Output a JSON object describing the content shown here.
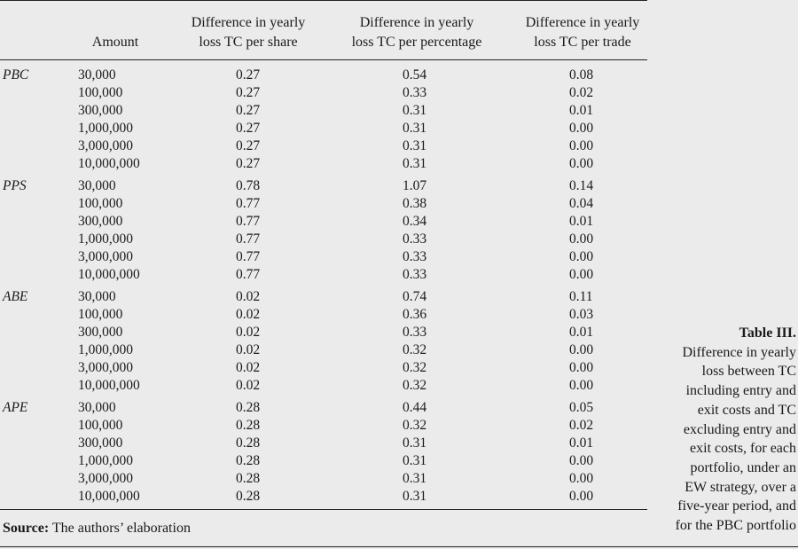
{
  "table": {
    "headers": {
      "amount": "Amount",
      "per_share": [
        "Difference in yearly",
        "loss TC per share"
      ],
      "per_percentage": [
        "Difference in yearly",
        "loss TC per percentage"
      ],
      "per_trade": [
        "Difference in yearly",
        "loss TC per trade"
      ]
    },
    "groups": [
      {
        "portfolio": "PBC",
        "rows": [
          {
            "amount": "30,000",
            "per_share": "0.27",
            "per_percentage": "0.54",
            "per_trade": "0.08"
          },
          {
            "amount": "100,000",
            "per_share": "0.27",
            "per_percentage": "0.33",
            "per_trade": "0.02"
          },
          {
            "amount": "300,000",
            "per_share": "0.27",
            "per_percentage": "0.31",
            "per_trade": "0.01"
          },
          {
            "amount": "1,000,000",
            "per_share": "0.27",
            "per_percentage": "0.31",
            "per_trade": "0.00"
          },
          {
            "amount": "3,000,000",
            "per_share": "0.27",
            "per_percentage": "0.31",
            "per_trade": "0.00"
          },
          {
            "amount": "10,000,000",
            "per_share": "0.27",
            "per_percentage": "0.31",
            "per_trade": "0.00"
          }
        ]
      },
      {
        "portfolio": "PPS",
        "rows": [
          {
            "amount": "30,000",
            "per_share": "0.78",
            "per_percentage": "1.07",
            "per_trade": "0.14"
          },
          {
            "amount": "100,000",
            "per_share": "0.77",
            "per_percentage": "0.38",
            "per_trade": "0.04"
          },
          {
            "amount": "300,000",
            "per_share": "0.77",
            "per_percentage": "0.34",
            "per_trade": "0.01"
          },
          {
            "amount": "1,000,000",
            "per_share": "0.77",
            "per_percentage": "0.33",
            "per_trade": "0.00"
          },
          {
            "amount": "3,000,000",
            "per_share": "0.77",
            "per_percentage": "0.33",
            "per_trade": "0.00"
          },
          {
            "amount": "10,000,000",
            "per_share": "0.77",
            "per_percentage": "0.33",
            "per_trade": "0.00"
          }
        ]
      },
      {
        "portfolio": "ABE",
        "rows": [
          {
            "amount": "30,000",
            "per_share": "0.02",
            "per_percentage": "0.74",
            "per_trade": "0.11"
          },
          {
            "amount": "100,000",
            "per_share": "0.02",
            "per_percentage": "0.36",
            "per_trade": "0.03"
          },
          {
            "amount": "300,000",
            "per_share": "0.02",
            "per_percentage": "0.33",
            "per_trade": "0.01"
          },
          {
            "amount": "1,000,000",
            "per_share": "0.02",
            "per_percentage": "0.32",
            "per_trade": "0.00"
          },
          {
            "amount": "3,000,000",
            "per_share": "0.02",
            "per_percentage": "0.32",
            "per_trade": "0.00"
          },
          {
            "amount": "10,000,000",
            "per_share": "0.02",
            "per_percentage": "0.32",
            "per_trade": "0.00"
          }
        ]
      },
      {
        "portfolio": "APE",
        "rows": [
          {
            "amount": "30,000",
            "per_share": "0.28",
            "per_percentage": "0.44",
            "per_trade": "0.05"
          },
          {
            "amount": "100,000",
            "per_share": "0.28",
            "per_percentage": "0.32",
            "per_trade": "0.02"
          },
          {
            "amount": "300,000",
            "per_share": "0.28",
            "per_percentage": "0.31",
            "per_trade": "0.01"
          },
          {
            "amount": "1,000,000",
            "per_share": "0.28",
            "per_percentage": "0.31",
            "per_trade": "0.00"
          },
          {
            "amount": "3,000,000",
            "per_share": "0.28",
            "per_percentage": "0.31",
            "per_trade": "0.00"
          },
          {
            "amount": "10,000,000",
            "per_share": "0.28",
            "per_percentage": "0.31",
            "per_trade": "0.00"
          }
        ]
      }
    ]
  },
  "source": {
    "label": "Source:",
    "text": " The authors’ elaboration"
  },
  "caption": {
    "title": "Table III.",
    "lines": [
      "Difference in yearly",
      "loss between TC",
      "including entry and",
      "exit costs and TC",
      "excluding entry and",
      "exit costs, for each",
      "portfolio, under an",
      "EW strategy, over a",
      "five-year period, and",
      "for the PBC portfolio"
    ]
  }
}
